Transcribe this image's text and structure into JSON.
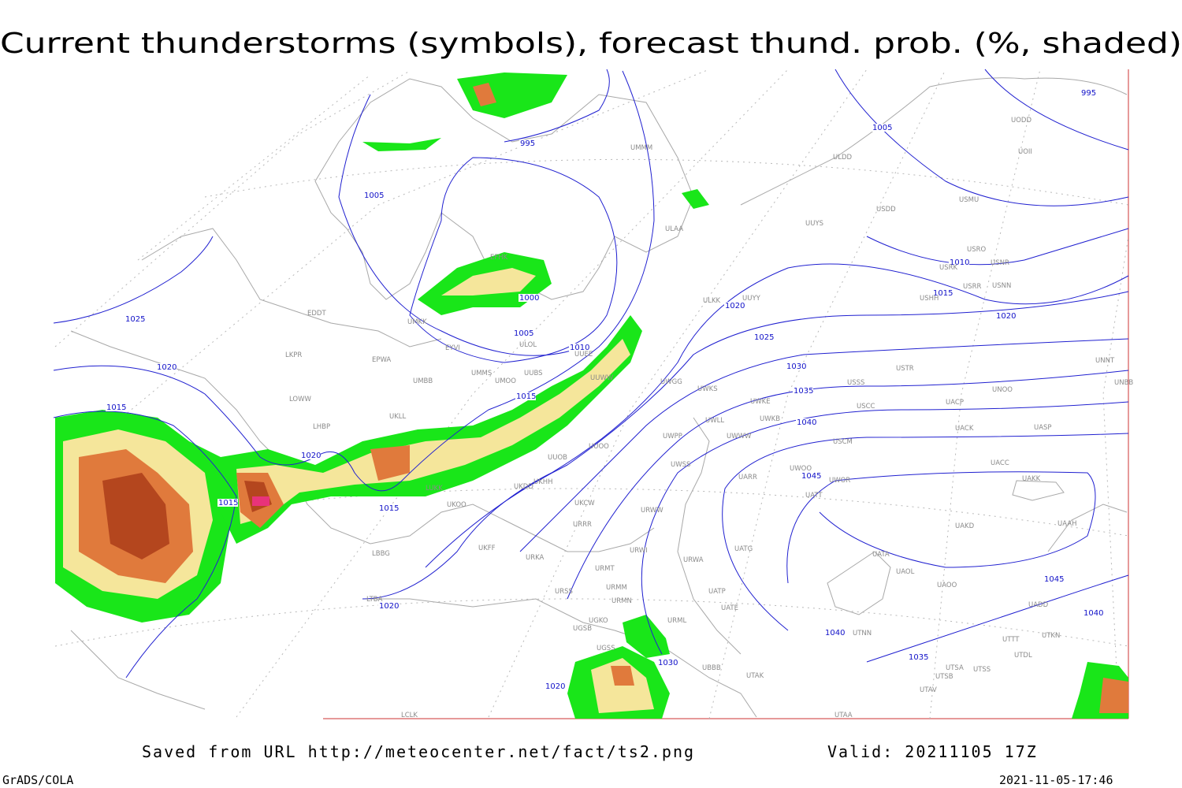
{
  "title": "Current thunderstorms (symbols), forecast thund. prob. (%, shaded)",
  "footer": {
    "source": "Saved from URL http://meteocenter.net/fact/ts2.png",
    "valid": "Valid: 20211105 17Z",
    "software": "GrADS/COLA",
    "timestamp": "2021-11-05-17:46"
  },
  "isobar_labels": [
    995,
    995,
    1005,
    1005,
    1005,
    1000,
    1010,
    1010,
    1015,
    1015,
    1015,
    1015,
    1015,
    1025,
    1020,
    1020,
    1020,
    1020,
    1020,
    1020,
    1025,
    1030,
    1030,
    1035,
    1035,
    1040,
    1040,
    1040,
    1045,
    1045
  ],
  "stations": [
    "UODD",
    "UOII",
    "ULDD",
    "UUYS",
    "USDD",
    "USMU",
    "ULAA",
    "UMMM",
    "USRO",
    "USRK",
    "USNR",
    "USHH",
    "USRR",
    "USNN",
    "UUYY",
    "ULKK",
    "ULOL",
    "EYVI",
    "EPWA",
    "UMMS",
    "UMOO",
    "UUBS",
    "UUEE",
    "UUWW",
    "UWGG",
    "UWKS",
    "USSS",
    "USTR",
    "UNOO",
    "UNBB",
    "UNNT",
    "UWKE",
    "UWKB",
    "USCC",
    "UACP",
    "UWLL",
    "UWWW",
    "UWPP",
    "USCM",
    "UACK",
    "UASP",
    "UACC",
    "UAKK",
    "UWSS",
    "UWOO",
    "UWOR",
    "UARR",
    "UATT",
    "UUOB",
    "UUOO",
    "UKHH",
    "UKDD",
    "UKOO",
    "LUKK",
    "UKCW",
    "URRR",
    "URWW",
    "URWI",
    "UKFF",
    "URKA",
    "UATG",
    "URWA",
    "UATE",
    "UATP",
    "URMT",
    "URMM",
    "URMN",
    "URSS",
    "URML",
    "UGKO",
    "UGSB",
    "UGSS",
    "UBBB",
    "UTAK",
    "UTAA",
    "UTNN",
    "UATA",
    "UAOL",
    "UAOO",
    "UAKD",
    "UADD",
    "UTTT",
    "UTKN",
    "UTDL",
    "UTSA",
    "UTSS",
    "UTSB",
    "UTAV",
    "EDDT",
    "LKPR",
    "LOWW",
    "LHBP",
    "LBBG",
    "LTBA",
    "UKLL",
    "UMBB",
    "UMKK",
    "LCLK",
    "UAAH",
    "EFHK"
  ]
}
